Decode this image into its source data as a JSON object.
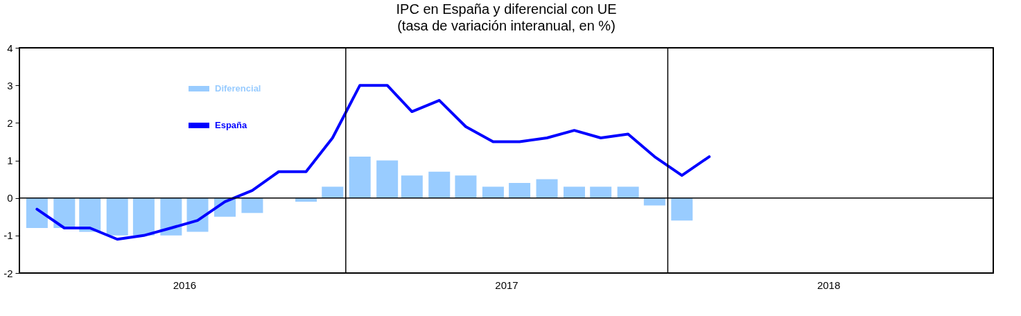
{
  "chart_data": {
    "type": "bar",
    "title": "IPC en España y diferencial con UE",
    "subtitle": "(tasa de variación interanual, en %)",
    "x": [
      "2016-01",
      "2016-02",
      "2016-03",
      "2016-04",
      "2016-05",
      "2016-06",
      "2016-07",
      "2016-08",
      "2016-09",
      "2016-10",
      "2016-11",
      "2016-12",
      "2017-01",
      "2017-02",
      "2017-03",
      "2017-04",
      "2017-05",
      "2017-06",
      "2017-07",
      "2017-08",
      "2017-09",
      "2017-10",
      "2017-11",
      "2017-12",
      "2018-01",
      "2018-02"
    ],
    "series": [
      {
        "name": "Diferencial",
        "type": "bar",
        "color": "#99ccff",
        "values": [
          -0.8,
          -0.8,
          -0.9,
          -1.0,
          -1.0,
          -1.0,
          -0.9,
          -0.5,
          -0.4,
          0,
          -0.1,
          0.3,
          1.1,
          1.0,
          0.6,
          0.7,
          0.6,
          0.3,
          0.4,
          0.5,
          0.3,
          0.3,
          0.3,
          -0.2,
          -0.6,
          null
        ]
      },
      {
        "name": "España",
        "type": "line",
        "color": "#0000ff",
        "values": [
          -0.3,
          -0.8,
          -0.8,
          -1.1,
          -1.0,
          -0.8,
          -0.6,
          -0.1,
          0.2,
          0.7,
          0.7,
          1.6,
          3.0,
          3.0,
          2.3,
          2.6,
          1.9,
          1.5,
          1.5,
          1.6,
          1.8,
          1.6,
          1.7,
          1.1,
          0.6,
          1.1
        ]
      }
    ],
    "xlim": [
      "2015-12-16",
      "2018-12-16"
    ],
    "xticks": [
      {
        "value": "2016-06-16",
        "label": "2016"
      },
      {
        "value": "2017-06-16",
        "label": "2017"
      },
      {
        "value": "2018-06-16",
        "label": "2018"
      }
    ],
    "ylim": [
      -2,
      4
    ],
    "yticks": [
      -2,
      -1,
      0,
      1,
      2,
      3,
      4
    ],
    "ref_lines": [
      {
        "axis": "y",
        "value": 0,
        "label": null
      },
      {
        "axis": "x",
        "value": "2016-12-16",
        "label": null
      },
      {
        "axis": "x",
        "value": "2017-12-16",
        "label": null
      }
    ],
    "grid": false,
    "legend": "top left",
    "line_style": "solid",
    "marker": "none"
  }
}
